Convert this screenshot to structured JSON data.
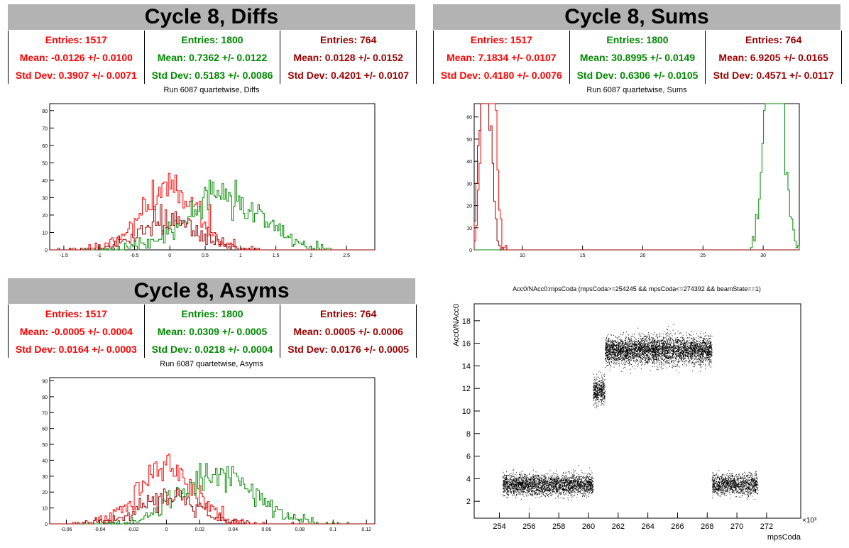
{
  "panels": [
    {
      "title": "Cycle 8, Diffs",
      "subtitle": "Run 6087 quartetwise, Diffs",
      "stats": [
        {
          "entries": "Entries: 1517",
          "mean": "Mean: -0.0126 +/- 0.0100",
          "std": "Std Dev: 0.3907 +/- 0.0071",
          "color": "#ff0000"
        },
        {
          "entries": "Entries: 1800",
          "mean": "Mean: 0.7362 +/- 0.0122",
          "std": "Std Dev: 0.5183 +/- 0.0086",
          "color": "#008800"
        },
        {
          "entries": "Entries: 764",
          "mean": "Mean: 0.0128 +/- 0.0152",
          "std": "Std Dev: 0.4201 +/- 0.0107",
          "color": "#990000"
        }
      ]
    },
    {
      "title": "Cycle 8, Sums",
      "subtitle": "Run 6087 quartetwise, Sums",
      "stats": [
        {
          "entries": "Entries: 1517",
          "mean": "Mean: 7.1834 +/- 0.0107",
          "std": "Std Dev: 0.4180 +/- 0.0076",
          "color": "#ff0000"
        },
        {
          "entries": "Entries: 1800",
          "mean": "Mean: 30.8995 +/- 0.0149",
          "std": "Std Dev: 0.6306 +/- 0.0105",
          "color": "#008800"
        },
        {
          "entries": "Entries: 764",
          "mean": "Mean: 6.9205 +/- 0.0165",
          "std": "Std Dev: 0.4571 +/- 0.0117",
          "color": "#990000"
        }
      ]
    },
    {
      "title": "Cycle 8, Asyms",
      "subtitle": "Run 6087 quartetwise, Asyms",
      "stats": [
        {
          "entries": "Entries: 1517",
          "mean": "Mean: -0.0005 +/- 0.0004",
          "std": "Std Dev: 0.0164 +/- 0.0003",
          "color": "#ff0000"
        },
        {
          "entries": "Entries: 1800",
          "mean": "Mean: 0.0309 +/- 0.0005",
          "std": "Std Dev: 0.0218 +/- 0.0004",
          "color": "#008800"
        },
        {
          "entries": "Entries: 764",
          "mean": "Mean: 0.0005 +/- 0.0006",
          "std": "Std Dev: 0.0176 +/- 0.0005",
          "color": "#990000"
        }
      ]
    }
  ],
  "scatter_title": "Acc0/NAcc0:mpsCoda (mpsCoda>=254245 && mpsCoda<=274392 && beamState==1)",
  "chart_data": [
    {
      "type": "histogram",
      "id": "diffs",
      "xlim": [
        -1.7,
        2.9
      ],
      "ylim": [
        0,
        84
      ],
      "xticks": [
        -1.5,
        -1,
        -0.5,
        0,
        0.5,
        1,
        1.5,
        2,
        2.5
      ],
      "xticklabels": [
        "-1.5",
        "-1",
        "-0.5",
        "0",
        "0.5",
        "1",
        "1.5",
        "2",
        "2.5"
      ],
      "yticks": [
        0,
        10,
        20,
        30,
        40,
        50,
        60,
        70,
        80
      ],
      "series": [
        {
          "color": "#ff0000",
          "mean": -0.0126,
          "sd": 0.3907,
          "n": 1517
        },
        {
          "color": "#008800",
          "mean": 0.7362,
          "sd": 0.5183,
          "n": 1800
        },
        {
          "color": "#990000",
          "mean": 0.0128,
          "sd": 0.4201,
          "n": 764
        }
      ]
    },
    {
      "type": "histogram",
      "id": "sums",
      "xlim": [
        6.0,
        33.0
      ],
      "ylim": [
        0,
        66
      ],
      "xticks": [
        10,
        15,
        20,
        25,
        30
      ],
      "xticklabels": [
        "10",
        "15",
        "20",
        "25",
        "30"
      ],
      "yticks": [
        0,
        10,
        20,
        30,
        40,
        50,
        60
      ],
      "series": [
        {
          "color": "#ff0000",
          "mean": 7.1834,
          "sd": 0.418,
          "n": 1517
        },
        {
          "color": "#008800",
          "mean": 30.8995,
          "sd": 0.6306,
          "n": 1800
        },
        {
          "color": "#990000",
          "mean": 6.9205,
          "sd": 0.4571,
          "n": 764
        }
      ]
    },
    {
      "type": "histogram",
      "id": "asyms",
      "xlim": [
        -0.07,
        0.125
      ],
      "ylim": [
        0,
        92
      ],
      "xticks": [
        -0.06,
        -0.04,
        -0.02,
        0,
        0.02,
        0.04,
        0.06,
        0.08,
        0.1,
        0.12
      ],
      "xticklabels": [
        "-0.06",
        "-0.04",
        "-0.02",
        "0",
        "0.02",
        "0.04",
        "0.06",
        "0.08",
        "0.1",
        "0.12"
      ],
      "yticks": [
        0,
        10,
        20,
        30,
        40,
        50,
        60,
        70,
        80,
        90
      ],
      "series": [
        {
          "color": "#ff0000",
          "mean": -0.0005,
          "sd": 0.0164,
          "n": 1517
        },
        {
          "color": "#008800",
          "mean": 0.0309,
          "sd": 0.0218,
          "n": 1800
        },
        {
          "color": "#990000",
          "mean": 0.0005,
          "sd": 0.0176,
          "n": 764
        }
      ]
    },
    {
      "type": "scatter",
      "id": "acc",
      "title": "Acc0/NAcc0:mpsCoda (mpsCoda>=254245 && mpsCoda<=274392 && beamState==1)",
      "xlabel": "mpsCoda",
      "ylabel": "Acc0/NAcc0",
      "xmultiplier": "×10³",
      "xlim": [
        252.3,
        274.3
      ],
      "ylim": [
        0.5,
        19.5
      ],
      "xticks": [
        254,
        256,
        258,
        260,
        262,
        264,
        266,
        268,
        270,
        272
      ],
      "yticks": [
        2,
        4,
        6,
        8,
        10,
        12,
        14,
        16,
        18
      ],
      "clusters": [
        {
          "x": [
            254.2,
            260.3
          ],
          "y_mean": 3.5,
          "y_sd": 0.45,
          "n": 2600
        },
        {
          "x": [
            260.3,
            261.1
          ],
          "y_mean": 11.8,
          "y_sd": 0.55,
          "n": 450
        },
        {
          "x": [
            261.1,
            268.3
          ],
          "y_mean": 15.4,
          "y_sd": 0.6,
          "n": 4000
        },
        {
          "x": [
            268.3,
            271.4
          ],
          "y_mean": 3.5,
          "y_sd": 0.45,
          "n": 1200
        }
      ]
    }
  ]
}
